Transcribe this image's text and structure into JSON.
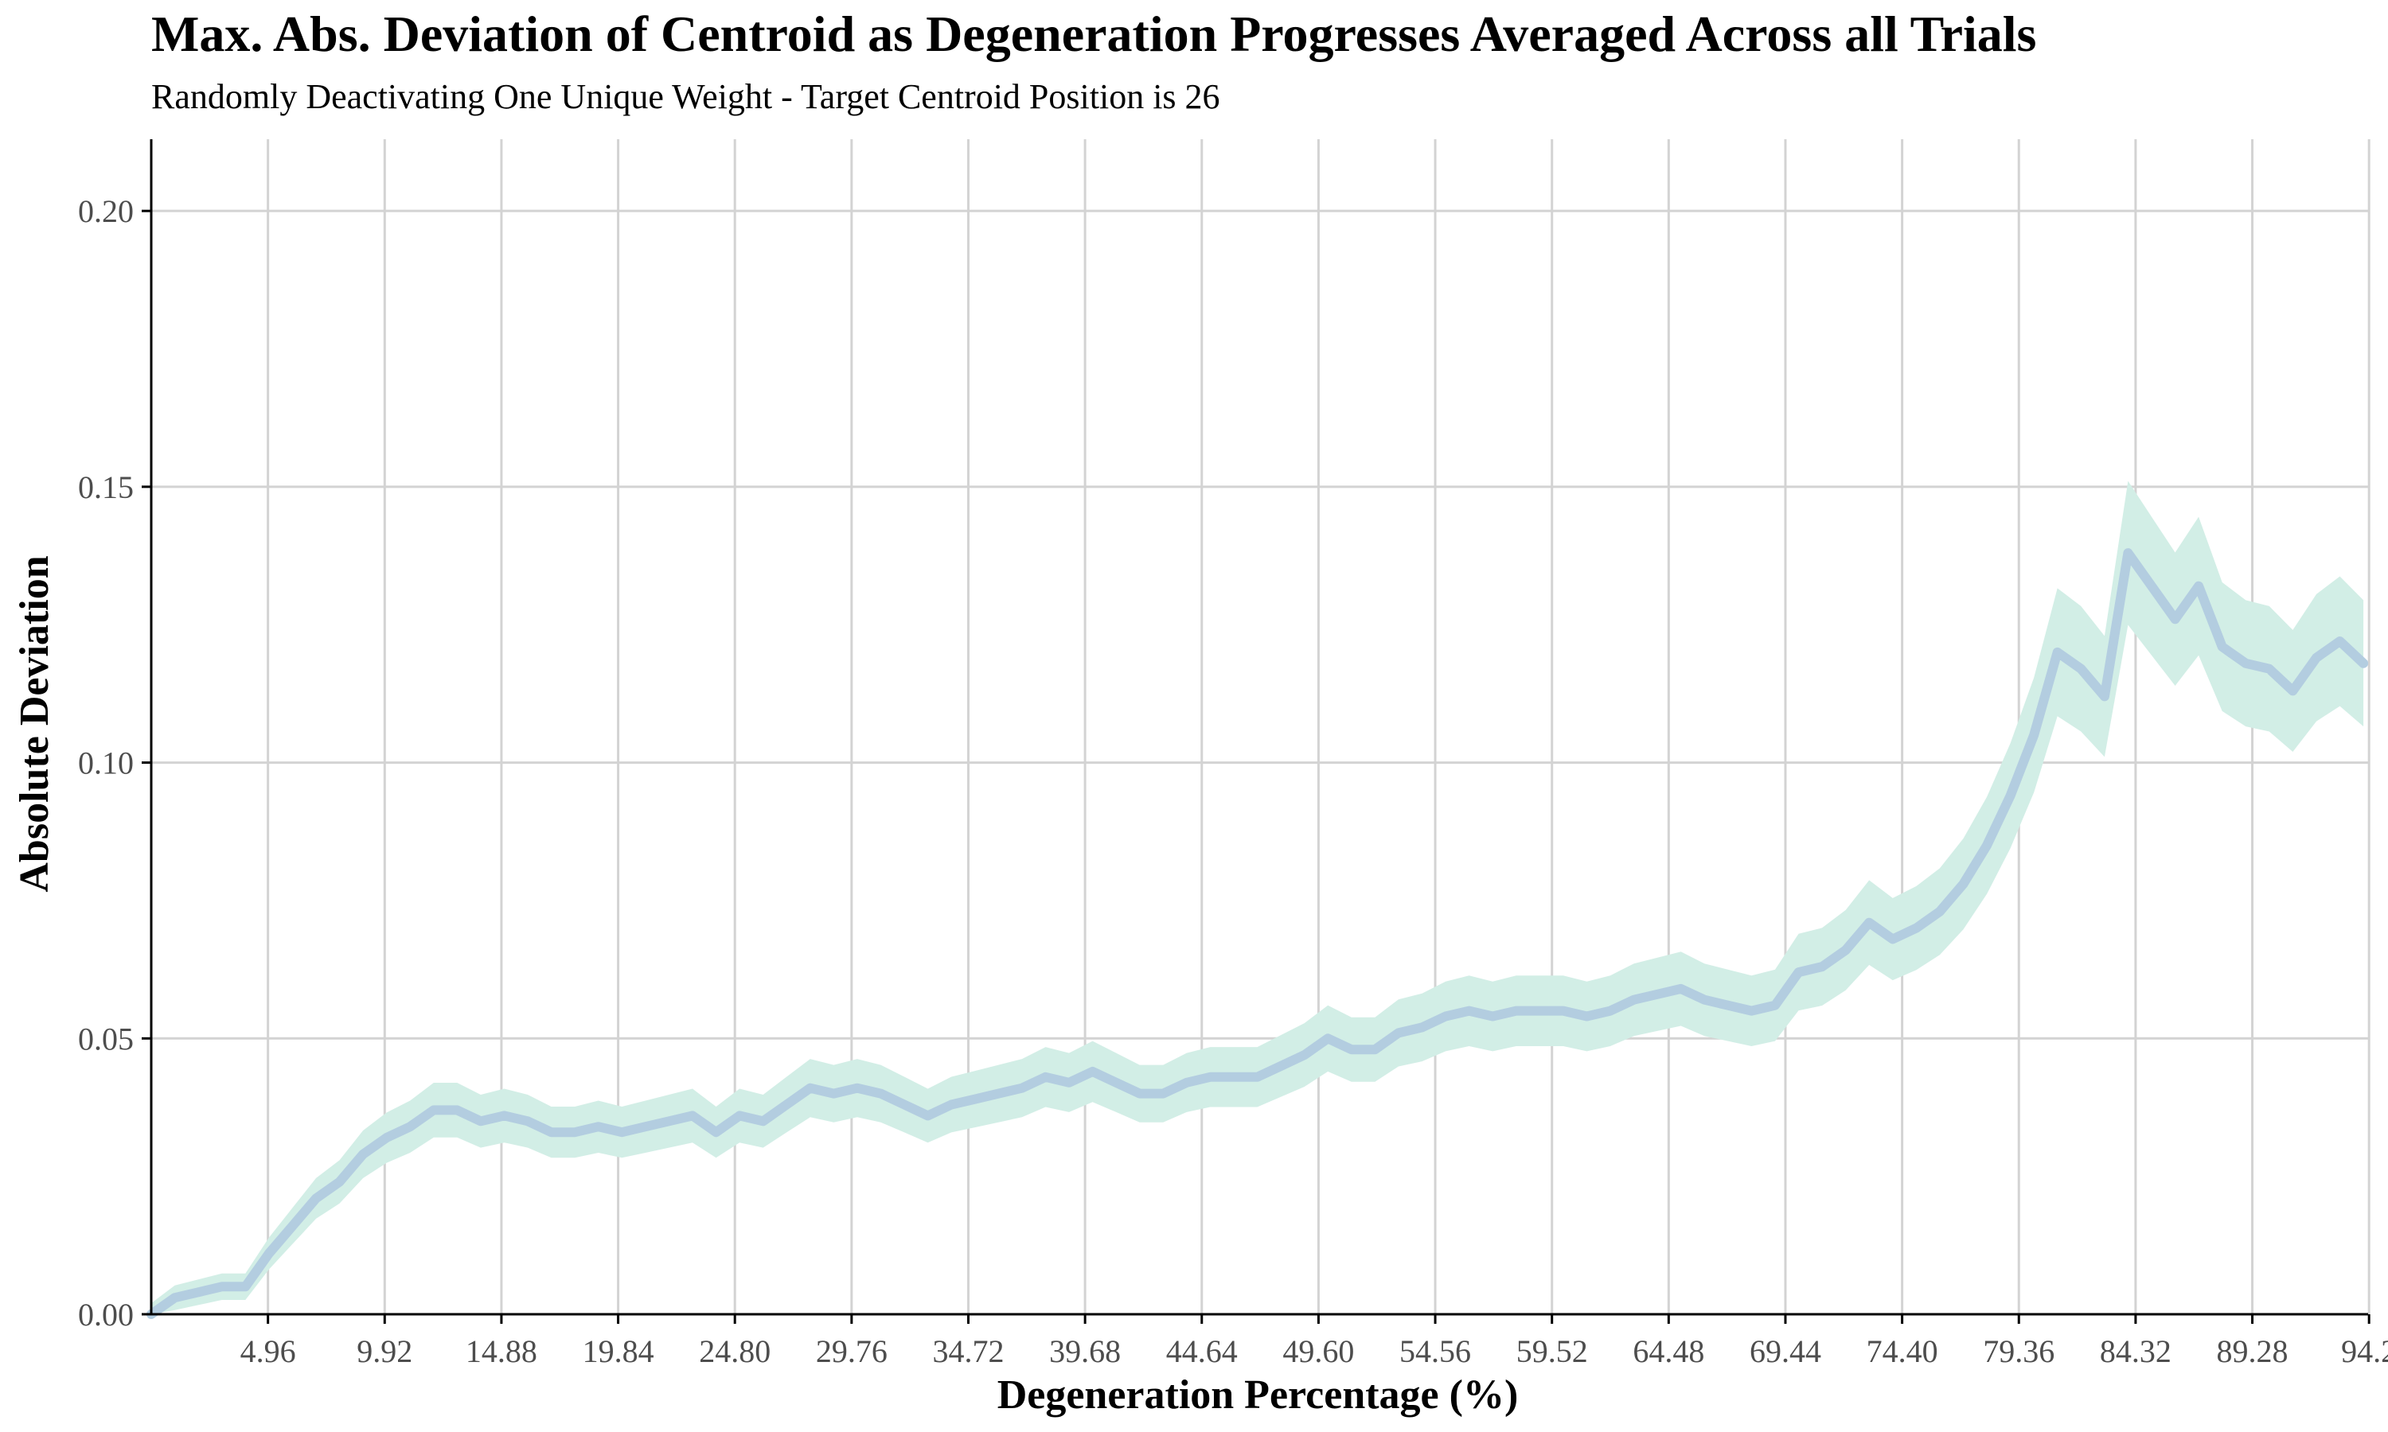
{
  "chart_data": {
    "type": "line",
    "title": "Max. Abs. Deviation of Centroid as Degeneration Progresses Averaged Across all Trials",
    "subtitle": "Randomly Deactivating One Unique Weight - Target Centroid Position is 26",
    "xlabel": "Degeneration Percentage (%)",
    "ylabel": "Absolute Deviation",
    "xlim": [
      0,
      94.2
    ],
    "ylim": [
      0,
      0.213
    ],
    "x_ticks": [
      4.96,
      9.92,
      14.88,
      19.84,
      24.8,
      29.76,
      34.72,
      39.68,
      44.64,
      49.6,
      54.56,
      59.52,
      64.48,
      69.44,
      74.4,
      79.36,
      84.32,
      89.28,
      94.24
    ],
    "x_tick_labels": [
      "4.96",
      "9.92",
      "14.88",
      "19.84",
      "24.80",
      "29.76",
      "34.72",
      "39.68",
      "44.64",
      "49.60",
      "54.56",
      "59.52",
      "64.48",
      "69.44",
      "74.40",
      "79.36",
      "84.32",
      "89.28",
      "94.2"
    ],
    "y_ticks": [
      0,
      0.05,
      0.1,
      0.15,
      0.2
    ],
    "y_tick_labels": [
      "0.00",
      "0.05",
      "0.10",
      "0.15",
      "0.20"
    ],
    "grid": true,
    "legend": "none",
    "colors": {
      "line": "#b3cde0",
      "band": "#d2eee6",
      "grid": "#d3d3d3",
      "axis": "#000000",
      "tick_label": "#4d4d4d"
    },
    "series": [
      {
        "x": [
          0,
          1,
          2,
          3,
          4,
          5,
          6,
          7,
          8,
          9,
          10,
          11,
          12,
          13,
          14,
          15,
          16,
          17,
          18,
          19,
          20,
          21,
          22,
          23,
          24,
          25,
          26,
          27,
          28,
          29,
          30,
          31,
          32,
          33,
          34,
          35,
          36,
          37,
          38,
          39,
          40,
          41,
          42,
          43,
          44,
          45,
          46,
          47,
          48,
          49,
          50,
          51,
          52,
          53,
          54,
          55,
          56,
          57,
          58,
          59,
          60,
          61,
          62,
          63,
          64,
          65,
          66,
          67,
          68,
          69,
          70,
          71,
          72,
          73,
          74,
          75,
          76,
          77,
          78,
          79,
          80,
          81,
          82,
          83,
          84,
          85,
          86,
          87,
          88,
          89,
          90,
          91,
          92,
          93,
          94
        ],
        "y": [
          0.0,
          0.003,
          0.004,
          0.005,
          0.005,
          0.011,
          0.016,
          0.021,
          0.024,
          0.029,
          0.032,
          0.034,
          0.037,
          0.037,
          0.035,
          0.036,
          0.035,
          0.033,
          0.033,
          0.034,
          0.033,
          0.034,
          0.035,
          0.036,
          0.033,
          0.036,
          0.035,
          0.038,
          0.041,
          0.04,
          0.041,
          0.04,
          0.038,
          0.036,
          0.038,
          0.039,
          0.04,
          0.041,
          0.043,
          0.042,
          0.044,
          0.042,
          0.04,
          0.04,
          0.042,
          0.043,
          0.043,
          0.043,
          0.045,
          0.047,
          0.05,
          0.048,
          0.048,
          0.051,
          0.052,
          0.054,
          0.055,
          0.054,
          0.055,
          0.055,
          0.055,
          0.054,
          0.055,
          0.057,
          0.058,
          0.059,
          0.057,
          0.056,
          0.055,
          0.056,
          0.062,
          0.063,
          0.066,
          0.071,
          0.068,
          0.07,
          0.073,
          0.078,
          0.085,
          0.094,
          0.105,
          0.12,
          0.117,
          0.112,
          0.138,
          0.132,
          0.126,
          0.132,
          0.121,
          0.118,
          0.117,
          0.113,
          0.119,
          0.122,
          0.118
        ]
      }
    ]
  }
}
